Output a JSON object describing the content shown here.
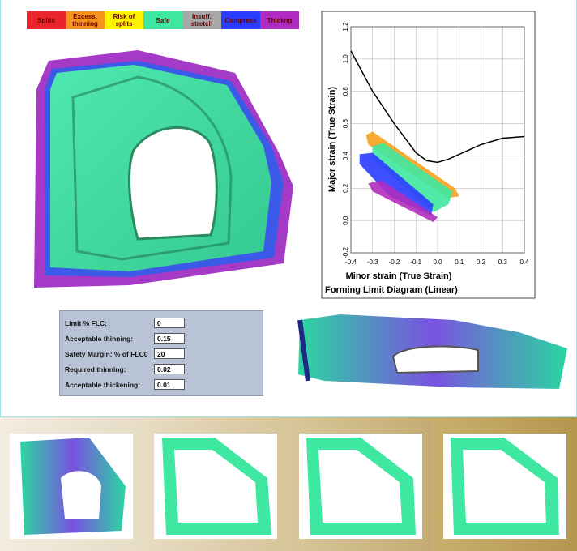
{
  "legend": [
    {
      "label": "Splits",
      "color": "#e8252a"
    },
    {
      "label": "Excess. thinning",
      "color": "#f7941d"
    },
    {
      "label": "Risk of splits",
      "color": "#fff200"
    },
    {
      "label": "Safe",
      "color": "#3ee8a0"
    },
    {
      "label": "Insuff. stretch",
      "color": "#a8a8a8"
    },
    {
      "label": "Compress",
      "color": "#2a3cff"
    },
    {
      "label": "Thickng",
      "color": "#b02cc0"
    }
  ],
  "chart_data": {
    "type": "line",
    "title": "Forming Limit Diagram (Linear)",
    "xlabel": "Minor strain (True Strain)",
    "ylabel": "Major strain (True Strain)",
    "xlim": [
      -0.4,
      0.4
    ],
    "ylim": [
      -0.2,
      1.2
    ],
    "xticks": [
      -0.4,
      -0.3,
      -0.2,
      -0.1,
      {
        "value": 0,
        "label": "0.0"
      },
      0.1,
      0.2,
      0.3,
      0.4
    ],
    "yticks": [
      -0.2,
      {
        "value": 0,
        "label": "0.0"
      },
      0.2,
      0.4,
      0.6,
      0.8,
      {
        "value": 1,
        "label": "1.0"
      },
      1.2
    ],
    "grid": true,
    "series": [
      {
        "color": "#000000",
        "x": [
          -0.4,
          -0.3,
          -0.2,
          -0.1,
          -0.05,
          0,
          0.05,
          0.1,
          0.2,
          0.3,
          0.4
        ],
        "values": [
          1.05,
          0.8,
          0.6,
          0.42,
          0.37,
          0.36,
          0.38,
          0.41,
          0.47,
          0.51,
          0.52
        ]
      }
    ],
    "regions": [
      {
        "color": "#f7a11d",
        "x": [
          -0.33,
          -0.3,
          0.08,
          0.1,
          0.05,
          -0.32
        ],
        "values": [
          0.53,
          0.55,
          0.2,
          0.15,
          0.14,
          0.47
        ]
      },
      {
        "color": "#3ee8a0",
        "x": [
          -0.3,
          -0.25,
          0.07,
          0.05,
          -0.02,
          -0.3
        ],
        "values": [
          0.46,
          0.48,
          0.18,
          0.1,
          0.05,
          0.38
        ]
      },
      {
        "color": "#2a3cff",
        "x": [
          -0.36,
          -0.3,
          -0.02,
          -0.03,
          -0.22,
          -0.36
        ],
        "values": [
          0.41,
          0.42,
          0.1,
          0.03,
          0.15,
          0.35
        ]
      },
      {
        "color": "#b02cc0",
        "x": [
          -0.32,
          -0.26,
          0,
          -0.02,
          -0.3
        ],
        "values": [
          0.23,
          0.25,
          0.02,
          -0.01,
          0.18
        ]
      }
    ]
  },
  "form": {
    "rows": [
      {
        "label": "Limit % FLC:",
        "value": 0
      },
      {
        "label": "Acceptable thinning:",
        "value": 0.15
      },
      {
        "label": "Safety Margin: % of FLC0",
        "value": 20
      },
      {
        "label": "Required thinning:",
        "value": 0.02
      },
      {
        "label": "Acceptable thickening:",
        "value": 0.01
      }
    ]
  }
}
